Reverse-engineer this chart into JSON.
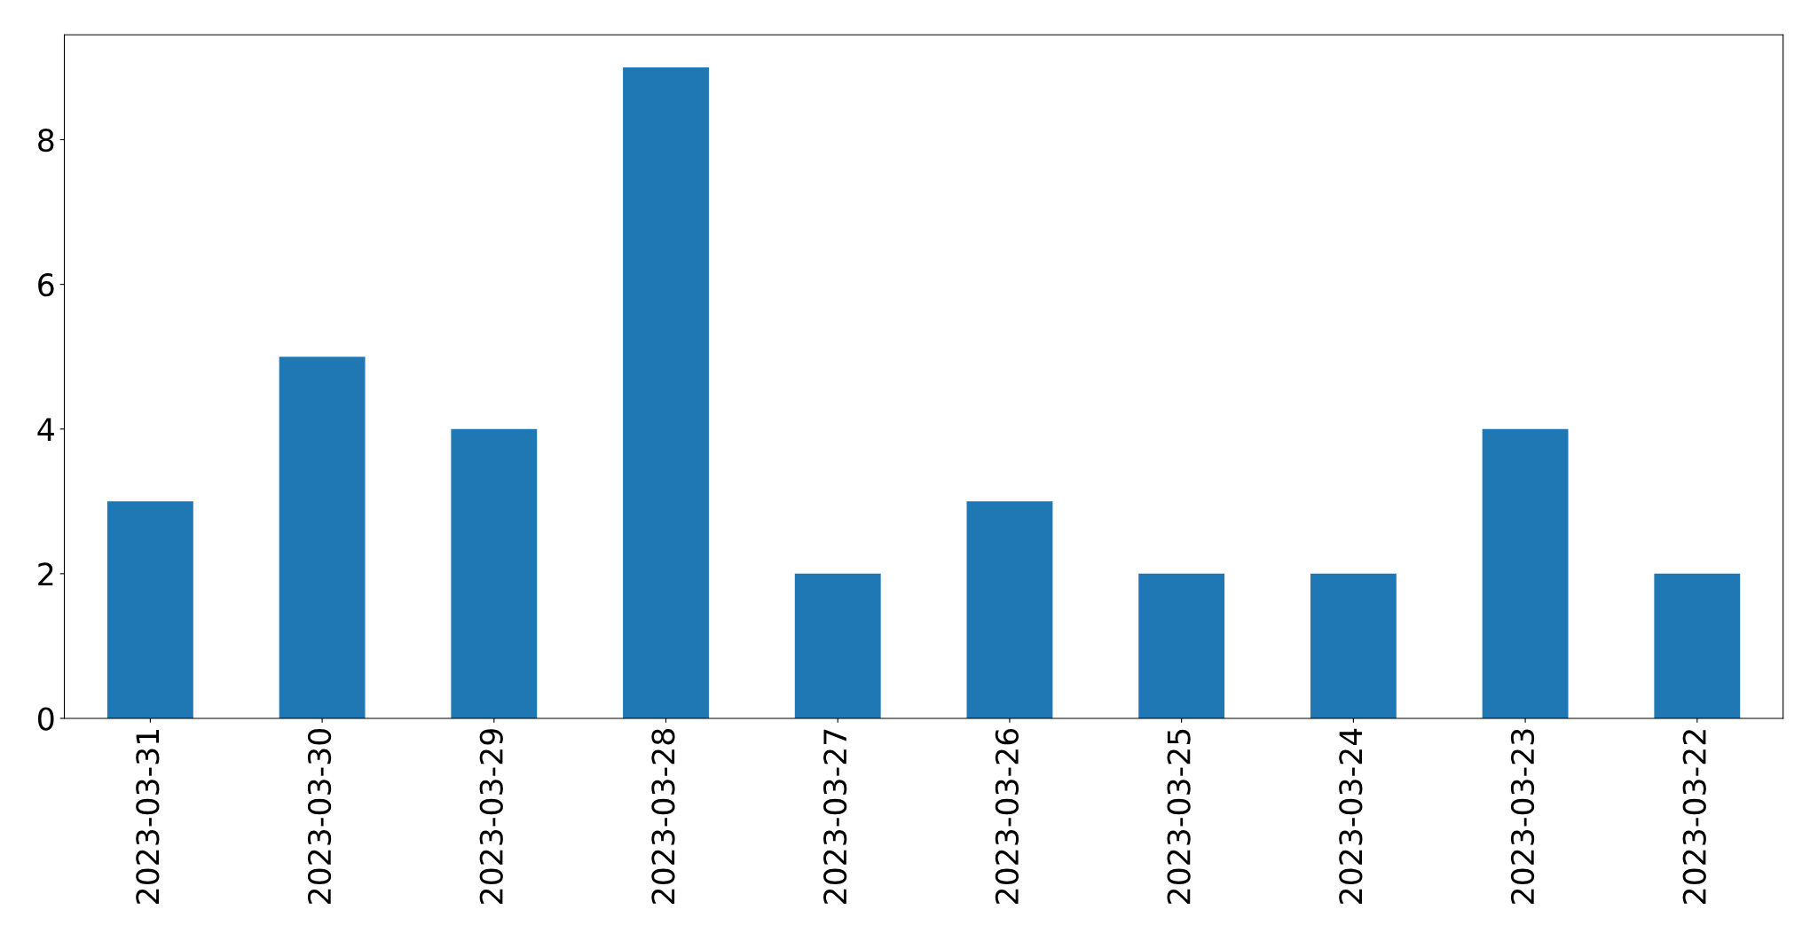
{
  "chart_data": {
    "type": "bar",
    "categories": [
      "2023-03-31",
      "2023-03-30",
      "2023-03-29",
      "2023-03-28",
      "2023-03-27",
      "2023-03-26",
      "2023-03-25",
      "2023-03-24",
      "2023-03-23",
      "2023-03-22"
    ],
    "values": [
      3,
      5,
      4,
      9,
      2,
      3,
      2,
      2,
      4,
      2
    ],
    "color": "#1f77b4",
    "ylim": [
      0,
      9.45
    ],
    "yticks": [
      0,
      2,
      4,
      6,
      8
    ],
    "grid": false
  }
}
